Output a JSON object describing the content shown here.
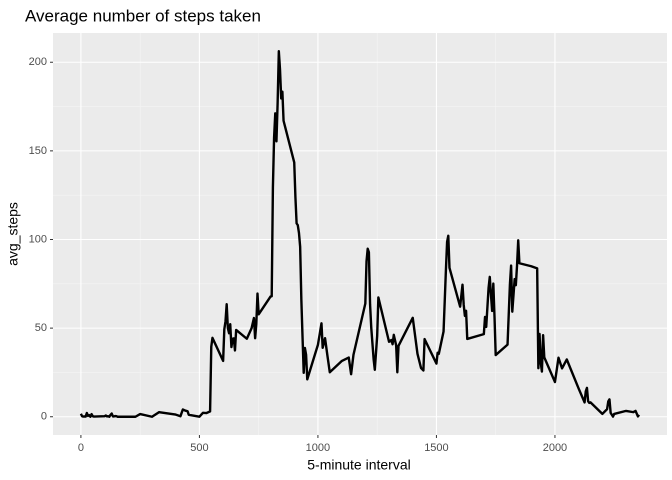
{
  "chart_data": {
    "type": "line",
    "title": "Average number of steps taken",
    "x_label": "5-minute interval",
    "y_label": "avg_steps",
    "x": [
      0,
      5,
      10,
      15,
      20,
      25,
      30,
      35,
      40,
      45,
      50,
      55,
      100,
      105,
      110,
      115,
      120,
      125,
      130,
      135,
      140,
      145,
      150,
      155,
      200,
      230,
      250,
      300,
      330,
      400,
      420,
      430,
      440,
      450,
      455,
      500,
      515,
      530,
      545,
      550,
      555,
      600,
      605,
      610,
      615,
      620,
      625,
      630,
      635,
      640,
      645,
      650,
      655,
      700,
      720,
      730,
      735,
      740,
      745,
      750,
      800,
      805,
      810,
      815,
      820,
      825,
      830,
      835,
      840,
      845,
      850,
      855,
      900,
      905,
      910,
      915,
      920,
      925,
      930,
      935,
      940,
      945,
      950,
      955,
      1000,
      1015,
      1020,
      1030,
      1040,
      1050,
      1100,
      1130,
      1140,
      1150,
      1200,
      1205,
      1210,
      1215,
      1220,
      1225,
      1235,
      1240,
      1250,
      1255,
      1300,
      1310,
      1315,
      1320,
      1330,
      1335,
      1340,
      1400,
      1420,
      1435,
      1445,
      1450,
      1500,
      1505,
      1510,
      1530,
      1535,
      1540,
      1545,
      1550,
      1555,
      1600,
      1610,
      1615,
      1620,
      1625,
      1630,
      1700,
      1705,
      1710,
      1720,
      1725,
      1730,
      1735,
      1740,
      1745,
      1750,
      1800,
      1810,
      1815,
      1820,
      1830,
      1835,
      1840,
      1845,
      1850,
      1900,
      1925,
      1930,
      1935,
      1940,
      1945,
      1950,
      1955,
      2000,
      2015,
      2030,
      2050,
      2100,
      2125,
      2130,
      2135,
      2140,
      2145,
      2150,
      2200,
      2220,
      2225,
      2230,
      2235,
      2245,
      2250,
      2300,
      2330,
      2340,
      2350,
      2355
    ],
    "series": [
      {
        "name": "avg_steps",
        "color": "#000000",
        "values": [
          1.7,
          0.3,
          0.1,
          0.2,
          0.1,
          2.1,
          0.5,
          0.9,
          0,
          1.5,
          0.3,
          0.1,
          0.3,
          0.7,
          0.2,
          0.3,
          0,
          1.1,
          1.8,
          0.2,
          0.2,
          0.4,
          0.3,
          0,
          0,
          0,
          1.5,
          0,
          2.6,
          1.2,
          0.3,
          4.1,
          3.5,
          3.1,
          1.1,
          0,
          2.2,
          2.1,
          3,
          39.5,
          44.5,
          31.5,
          49.3,
          53.8,
          63.5,
          50,
          47.1,
          52.2,
          39.3,
          44,
          44.2,
          37.4,
          49,
          44,
          49.9,
          55.7,
          44.3,
          52.3,
          69.5,
          57.8,
          67.8,
          68,
          129.4,
          157.5,
          171.2,
          155.4,
          177.3,
          206.2,
          195.9,
          179.6,
          183.4,
          167,
          143.5,
          124,
          109.1,
          108.1,
          103.7,
          95.9,
          66.2,
          45.2,
          24.8,
          38.8,
          35,
          21.1,
          40.6,
          52.7,
          38.9,
          44.3,
          34.5,
          25.1,
          31.4,
          33.4,
          24,
          35,
          63.9,
          87.7,
          94.8,
          92.8,
          63.4,
          50.2,
          32.4,
          26.5,
          45.7,
          67.3,
          42.3,
          43.3,
          40.9,
          46.2,
          40.3,
          25.1,
          40,
          55.8,
          35.5,
          27.5,
          26.1,
          43.8,
          30,
          36.1,
          35.5,
          48.1,
          65.3,
          82.9,
          98.7,
          102.1,
          84,
          62.1,
          74.5,
          63.2,
          56.9,
          59.8,
          43.9,
          46.6,
          56.3,
          50.7,
          72.7,
          78.9,
          68.9,
          59.7,
          75.1,
          56.5,
          34.8,
          40.7,
          74.7,
          85.3,
          59.3,
          77.7,
          74.2,
          85.3,
          99.5,
          86.6,
          84.9,
          83.7,
          27.4,
          46.7,
          30.6,
          25.5,
          46,
          33.5,
          19.6,
          33.3,
          27.3,
          32.3,
          15.9,
          8.1,
          14.3,
          16.3,
          8.7,
          7.8,
          8.1,
          1.6,
          4.3,
          8.7,
          9.8,
          2.2,
          0.1,
          1.6,
          3.3,
          2.6,
          3.3,
          0.2,
          1.1
        ]
      }
    ],
    "xlim": [
      -117.75,
      2472.75
    ],
    "xticks": [
      0,
      500,
      1000,
      1500,
      2000
    ],
    "ylim": [
      -10.3,
      216.5
    ],
    "yticks": [
      0,
      50,
      100,
      150,
      200
    ],
    "grid": true
  }
}
